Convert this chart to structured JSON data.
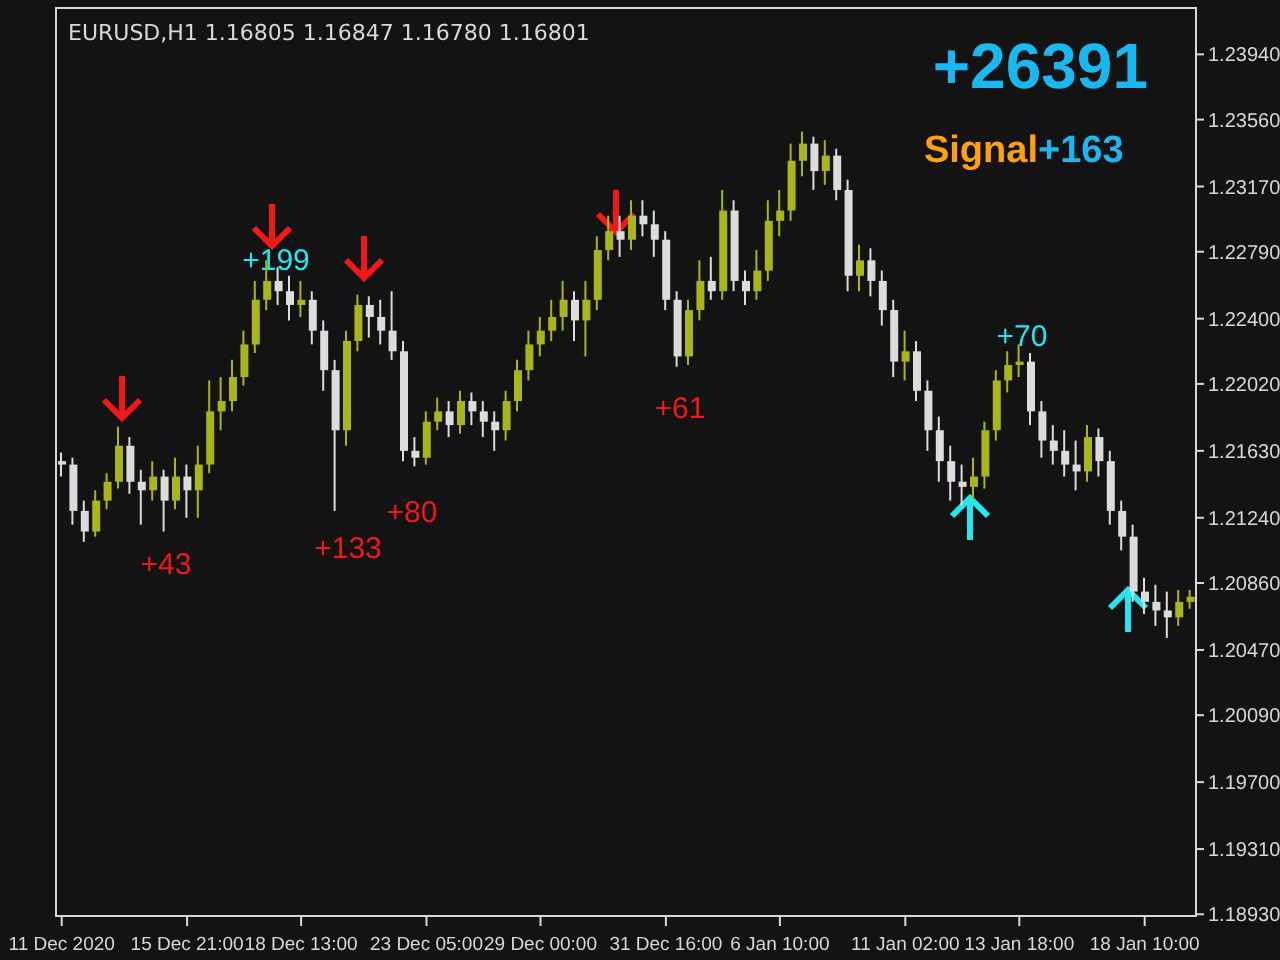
{
  "chart_data": {
    "type": "candlestick",
    "title": "EURUSD,H1  1.16805 1.16847 1.16780 1.16801",
    "annotations": [
      "+26391",
      "Signal",
      "+163",
      "+199",
      "+43",
      "+133",
      "+80",
      "+61",
      "+70"
    ],
    "categories": [
      "11 Dec 2020",
      null,
      null,
      null,
      null,
      null,
      null,
      null,
      null,
      null,
      null,
      "15 Dec 21:00",
      null,
      null,
      null,
      null,
      null,
      null,
      null,
      null,
      null,
      "18 Dec 13:00",
      null,
      null,
      null,
      null,
      null,
      null,
      null,
      null,
      null,
      null,
      "23 Dec 05:00",
      null,
      null,
      null,
      null,
      null,
      null,
      null,
      null,
      null,
      "29 Dec 00:00",
      null,
      null,
      null,
      null,
      null,
      null,
      null,
      null,
      null,
      null,
      "31 Dec 16:00",
      null,
      null,
      null,
      null,
      null,
      null,
      null,
      null,
      null,
      "6 Jan 10:00",
      null,
      null,
      null,
      null,
      null,
      null,
      null,
      null,
      null,
      null,
      "11 Jan 02:00",
      null,
      null,
      null,
      null,
      null,
      null,
      null,
      null,
      null,
      "13 Jan 18:00",
      null,
      null,
      null,
      null,
      null,
      null,
      null,
      null,
      null,
      null,
      "18 Jan 10:00",
      null,
      null,
      null,
      null
    ],
    "ohlc": [
      [
        1.2157,
        1.2162,
        1.2148,
        1.2155
      ],
      [
        1.2155,
        1.2159,
        1.212,
        1.2128
      ],
      [
        1.2128,
        1.2134,
        1.211,
        1.2116
      ],
      [
        1.2116,
        1.214,
        1.2113,
        1.2134
      ],
      [
        1.2134,
        1.215,
        1.2129,
        1.2145
      ],
      [
        1.2145,
        1.2177,
        1.2141,
        1.2166
      ],
      [
        1.2166,
        1.2171,
        1.2138,
        1.2145
      ],
      [
        1.2145,
        1.2152,
        1.212,
        1.214
      ],
      [
        1.214,
        1.2157,
        1.2134,
        1.2148
      ],
      [
        1.2148,
        1.2152,
        1.2116,
        1.2134
      ],
      [
        1.2134,
        1.2159,
        1.2129,
        1.2148
      ],
      [
        1.2148,
        1.2155,
        1.2124,
        1.214
      ],
      [
        1.214,
        1.2166,
        1.2124,
        1.2155
      ],
      [
        1.2155,
        1.2204,
        1.215,
        1.2186
      ],
      [
        1.2186,
        1.2206,
        1.2175,
        1.2192
      ],
      [
        1.2192,
        1.2216,
        1.2186,
        1.2206
      ],
      [
        1.2206,
        1.2233,
        1.2201,
        1.2225
      ],
      [
        1.2225,
        1.2262,
        1.222,
        1.2251
      ],
      [
        1.2251,
        1.2274,
        1.2245,
        1.2262
      ],
      [
        1.2262,
        1.227,
        1.2248,
        1.2256
      ],
      [
        1.2256,
        1.2265,
        1.2239,
        1.2248
      ],
      [
        1.2248,
        1.2262,
        1.2241,
        1.2251
      ],
      [
        1.2251,
        1.2256,
        1.2225,
        1.2233
      ],
      [
        1.2233,
        1.2239,
        1.2198,
        1.221
      ],
      [
        1.221,
        1.2216,
        1.2128,
        1.2175
      ],
      [
        1.2175,
        1.2233,
        1.2166,
        1.2227
      ],
      [
        1.2227,
        1.2254,
        1.2221,
        1.2248
      ],
      [
        1.2248,
        1.2253,
        1.2229,
        1.2241
      ],
      [
        1.2241,
        1.2251,
        1.2225,
        1.2233
      ],
      [
        1.2233,
        1.2256,
        1.2216,
        1.2221
      ],
      [
        1.2221,
        1.2227,
        1.2157,
        1.2163
      ],
      [
        1.2163,
        1.2171,
        1.2154,
        1.2159
      ],
      [
        1.2159,
        1.2186,
        1.2155,
        1.218
      ],
      [
        1.218,
        1.2194,
        1.2175,
        1.2186
      ],
      [
        1.2186,
        1.2192,
        1.2171,
        1.2178
      ],
      [
        1.2178,
        1.2198,
        1.2173,
        1.2192
      ],
      [
        1.2192,
        1.2197,
        1.2178,
        1.2186
      ],
      [
        1.2186,
        1.2192,
        1.2171,
        1.218
      ],
      [
        1.218,
        1.2186,
        1.2163,
        1.2175
      ],
      [
        1.2175,
        1.2198,
        1.2169,
        1.2192
      ],
      [
        1.2192,
        1.2216,
        1.2186,
        1.221
      ],
      [
        1.221,
        1.2233,
        1.2204,
        1.2225
      ],
      [
        1.2225,
        1.2241,
        1.2218,
        1.2233
      ],
      [
        1.2233,
        1.2251,
        1.2227,
        1.2241
      ],
      [
        1.2241,
        1.2262,
        1.2233,
        1.2251
      ],
      [
        1.2251,
        1.2256,
        1.2227,
        1.2239
      ],
      [
        1.2239,
        1.2262,
        1.2218,
        1.2251
      ],
      [
        1.2251,
        1.2288,
        1.2245,
        1.228
      ],
      [
        1.228,
        1.23,
        1.2274,
        1.2291
      ],
      [
        1.2291,
        1.23,
        1.2276,
        1.2286
      ],
      [
        1.2286,
        1.2309,
        1.228,
        1.23
      ],
      [
        1.23,
        1.2309,
        1.2288,
        1.2295
      ],
      [
        1.2295,
        1.2303,
        1.2276,
        1.2286
      ],
      [
        1.2286,
        1.2291,
        1.2245,
        1.2251
      ],
      [
        1.2251,
        1.2256,
        1.2212,
        1.2218
      ],
      [
        1.2218,
        1.2251,
        1.2213,
        1.2245
      ],
      [
        1.2245,
        1.2274,
        1.2239,
        1.2262
      ],
      [
        1.2262,
        1.2276,
        1.2251,
        1.2256
      ],
      [
        1.2256,
        1.2315,
        1.2251,
        1.2303
      ],
      [
        1.2303,
        1.2309,
        1.2256,
        1.2262
      ],
      [
        1.2262,
        1.2268,
        1.2248,
        1.2256
      ],
      [
        1.2256,
        1.228,
        1.2251,
        1.2268
      ],
      [
        1.2268,
        1.2309,
        1.2262,
        1.2297
      ],
      [
        1.2297,
        1.2315,
        1.2288,
        1.2303
      ],
      [
        1.2303,
        1.2342,
        1.2297,
        1.2332
      ],
      [
        1.2332,
        1.2349,
        1.2323,
        1.2342
      ],
      [
        1.2342,
        1.2346,
        1.2315,
        1.2326
      ],
      [
        1.2326,
        1.2344,
        1.2318,
        1.2335
      ],
      [
        1.2335,
        1.2339,
        1.2309,
        1.2315
      ],
      [
        1.2315,
        1.2321,
        1.2256,
        1.2265
      ],
      [
        1.2265,
        1.2283,
        1.2256,
        1.2274
      ],
      [
        1.2274,
        1.2281,
        1.2253,
        1.2262
      ],
      [
        1.2262,
        1.2268,
        1.2236,
        1.2245
      ],
      [
        1.2245,
        1.2251,
        1.2206,
        1.2215
      ],
      [
        1.2215,
        1.2233,
        1.2204,
        1.2221
      ],
      [
        1.2221,
        1.2227,
        1.2192,
        1.2198
      ],
      [
        1.2198,
        1.2204,
        1.2163,
        1.2175
      ],
      [
        1.2175,
        1.2183,
        1.2145,
        1.2157
      ],
      [
        1.2157,
        1.2166,
        1.2134,
        1.2145
      ],
      [
        1.2145,
        1.2155,
        1.2131,
        1.2142
      ],
      [
        1.2142,
        1.2159,
        1.2134,
        1.2148
      ],
      [
        1.2148,
        1.218,
        1.2141,
        1.2175
      ],
      [
        1.2175,
        1.221,
        1.2169,
        1.2204
      ],
      [
        1.2204,
        1.2221,
        1.2197,
        1.2213
      ],
      [
        1.2213,
        1.2225,
        1.2206,
        1.2215
      ],
      [
        1.2215,
        1.222,
        1.2178,
        1.2186
      ],
      [
        1.2186,
        1.2192,
        1.2159,
        1.2169
      ],
      [
        1.2169,
        1.2178,
        1.2155,
        1.2163
      ],
      [
        1.2163,
        1.2175,
        1.2148,
        1.2155
      ],
      [
        1.2155,
        1.2169,
        1.214,
        1.2151
      ],
      [
        1.2151,
        1.2178,
        1.2145,
        1.2171
      ],
      [
        1.2171,
        1.2176,
        1.2148,
        1.2157
      ],
      [
        1.2157,
        1.2163,
        1.212,
        1.2128
      ],
      [
        1.2128,
        1.2134,
        1.2105,
        1.2113
      ],
      [
        1.2113,
        1.212,
        1.2075,
        1.2081
      ],
      [
        1.2081,
        1.2089,
        1.2068,
        1.2075
      ],
      [
        1.2075,
        1.2085,
        1.2061,
        1.207
      ],
      [
        1.207,
        1.2081,
        1.2054,
        1.2066
      ],
      [
        1.2066,
        1.2082,
        1.2061,
        1.2075
      ],
      [
        1.2075,
        1.2082,
        1.2071,
        1.2078
      ]
    ],
    "ylim": [
      1.1892,
      1.2421
    ],
    "yticks": [
      {
        "value": 1.2394,
        "label": "1.23940"
      },
      {
        "value": 1.2356,
        "label": "1.23560"
      },
      {
        "value": 1.2317,
        "label": "1.23170"
      },
      {
        "value": 1.2279,
        "label": "1.22790"
      },
      {
        "value": 1.224,
        "label": "1.22400"
      },
      {
        "value": 1.2202,
        "label": "1.22020"
      },
      {
        "value": 1.2163,
        "label": "1.21630"
      },
      {
        "value": 1.2124,
        "label": "1.21240"
      },
      {
        "value": 1.2086,
        "label": "1.20860"
      },
      {
        "value": 1.2047,
        "label": "1.20470"
      },
      {
        "value": 1.2009,
        "label": "1.20090"
      },
      {
        "value": 1.197,
        "label": "1.19700"
      },
      {
        "value": 1.1931,
        "label": "1.19310"
      },
      {
        "value": 1.1893,
        "label": "1.18930"
      }
    ],
    "tick_labels": "xy"
  }
}
